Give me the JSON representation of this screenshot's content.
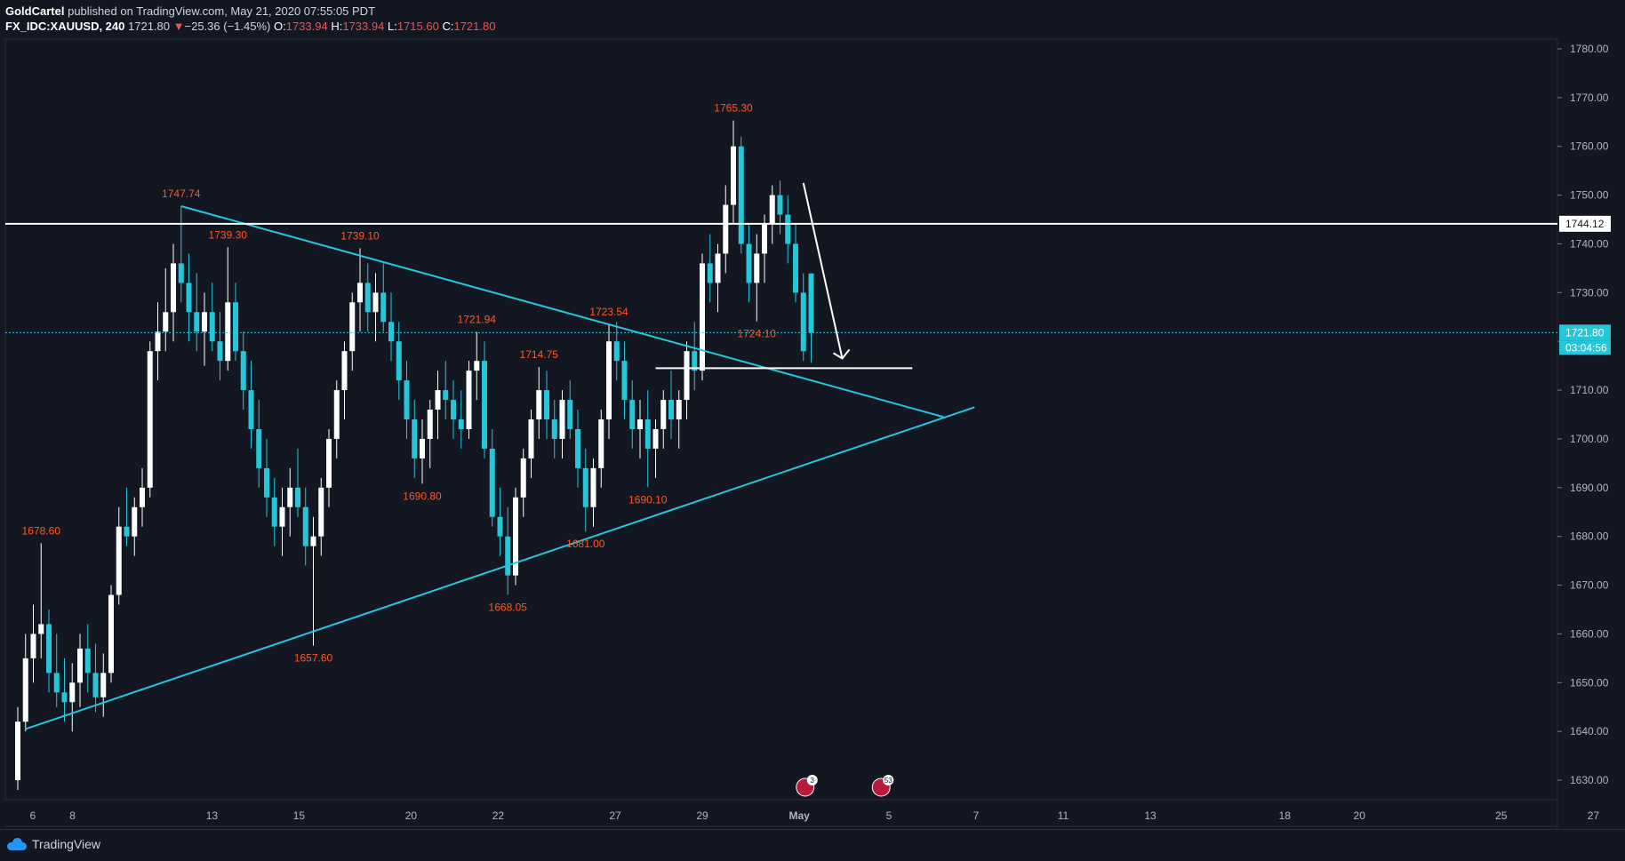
{
  "header": {
    "author": "GoldCartel",
    "published": "published on TradingView.com, May 21, 2020 07:55:05 PDT",
    "symbol": "FX_IDC:XAUUSD, 240",
    "last": "1721.80",
    "change_arrow": "▼",
    "change": "−25.36 (−1.45%)",
    "o_label": "O:",
    "o": "1733.94",
    "h_label": "H:",
    "h": "1733.94",
    "l_label": "L:",
    "l": "1715.60",
    "c_label": "C:",
    "c": "1721.80"
  },
  "footer": {
    "brand": "TradingView",
    "logo_icon": "tradingview-cloud-icon"
  },
  "colors": {
    "background": "#131722",
    "up": "#ffffff",
    "down": "#26c6da",
    "trendline": "#26c6da",
    "price_label": "#ff5722",
    "axis_text": "#b2b5be"
  },
  "chart_data": {
    "type": "candlestick",
    "ylim": [
      1626,
      1782
    ],
    "y_ticks": [
      1630,
      1640,
      1650,
      1660,
      1670,
      1680,
      1690,
      1700,
      1710,
      1720,
      1730,
      1740,
      1750,
      1760,
      1770,
      1780
    ],
    "x_tick_labels": [
      "6",
      "8",
      "13",
      "15",
      "20",
      "22",
      "27",
      "29",
      "May",
      "5",
      "7",
      "11",
      "13",
      "18",
      "20",
      "25",
      "27"
    ],
    "ohlc_4h": [
      [
        1630,
        1645,
        1628,
        1642
      ],
      [
        1642,
        1660,
        1640,
        1655
      ],
      [
        1655,
        1666,
        1650,
        1660
      ],
      [
        1660,
        1678.6,
        1655,
        1662
      ],
      [
        1662,
        1665,
        1648,
        1652
      ],
      [
        1652,
        1660,
        1645,
        1648
      ],
      [
        1648,
        1655,
        1642,
        1646
      ],
      [
        1646,
        1654,
        1640,
        1650
      ],
      [
        1650,
        1660,
        1645,
        1657
      ],
      [
        1657,
        1662,
        1648,
        1652
      ],
      [
        1652,
        1658,
        1644,
        1647
      ],
      [
        1647,
        1656,
        1643,
        1652
      ],
      [
        1652,
        1670,
        1650,
        1668
      ],
      [
        1668,
        1686,
        1666,
        1682
      ],
      [
        1682,
        1690,
        1678,
        1680
      ],
      [
        1680,
        1688,
        1676,
        1686
      ],
      [
        1686,
        1694,
        1682,
        1690
      ],
      [
        1690,
        1720,
        1688,
        1718
      ],
      [
        1718,
        1728,
        1712,
        1722
      ],
      [
        1722,
        1735,
        1718,
        1726
      ],
      [
        1726,
        1740,
        1720,
        1736
      ],
      [
        1736,
        1747.74,
        1728,
        1732
      ],
      [
        1732,
        1738,
        1720,
        1726
      ],
      [
        1726,
        1734,
        1718,
        1722
      ],
      [
        1722,
        1730,
        1715,
        1726
      ],
      [
        1726,
        1732,
        1718,
        1720
      ],
      [
        1720,
        1726,
        1712,
        1716
      ],
      [
        1716,
        1739.3,
        1714,
        1728
      ],
      [
        1728,
        1732,
        1716,
        1718
      ],
      [
        1718,
        1722,
        1706,
        1710
      ],
      [
        1710,
        1716,
        1698,
        1702
      ],
      [
        1702,
        1708,
        1690,
        1694
      ],
      [
        1694,
        1700,
        1684,
        1688
      ],
      [
        1688,
        1692,
        1678,
        1682
      ],
      [
        1682,
        1690,
        1676,
        1686
      ],
      [
        1686,
        1694,
        1680,
        1690
      ],
      [
        1690,
        1698,
        1684,
        1686
      ],
      [
        1686,
        1690,
        1674,
        1678
      ],
      [
        1678,
        1684,
        1657.6,
        1680
      ],
      [
        1680,
        1692,
        1676,
        1690
      ],
      [
        1690,
        1702,
        1686,
        1700
      ],
      [
        1700,
        1712,
        1696,
        1710
      ],
      [
        1710,
        1720,
        1704,
        1718
      ],
      [
        1718,
        1730,
        1714,
        1728
      ],
      [
        1728,
        1739.1,
        1722,
        1732
      ],
      [
        1732,
        1736,
        1722,
        1726
      ],
      [
        1726,
        1734,
        1720,
        1730
      ],
      [
        1730,
        1736,
        1722,
        1724
      ],
      [
        1724,
        1730,
        1716,
        1720
      ],
      [
        1720,
        1724,
        1708,
        1712
      ],
      [
        1712,
        1716,
        1700,
        1704
      ],
      [
        1704,
        1708,
        1692,
        1696
      ],
      [
        1696,
        1704,
        1690.8,
        1700
      ],
      [
        1700,
        1708,
        1694,
        1706
      ],
      [
        1706,
        1714,
        1700,
        1710
      ],
      [
        1710,
        1716,
        1704,
        1708
      ],
      [
        1708,
        1712,
        1700,
        1704
      ],
      [
        1704,
        1710,
        1698,
        1702
      ],
      [
        1702,
        1716,
        1700,
        1714
      ],
      [
        1714,
        1721.94,
        1708,
        1716
      ],
      [
        1716,
        1720,
        1696,
        1698
      ],
      [
        1698,
        1702,
        1682,
        1684
      ],
      [
        1684,
        1690,
        1676,
        1680
      ],
      [
        1680,
        1686,
        1668.05,
        1672
      ],
      [
        1672,
        1690,
        1670,
        1688
      ],
      [
        1688,
        1698,
        1684,
        1696
      ],
      [
        1696,
        1706,
        1692,
        1704
      ],
      [
        1704,
        1714.75,
        1700,
        1710
      ],
      [
        1710,
        1714,
        1700,
        1704
      ],
      [
        1704,
        1708,
        1696,
        1700
      ],
      [
        1700,
        1710,
        1696,
        1708
      ],
      [
        1708,
        1712,
        1700,
        1702
      ],
      [
        1702,
        1706,
        1690,
        1694
      ],
      [
        1694,
        1698,
        1681,
        1686
      ],
      [
        1686,
        1696,
        1682,
        1694
      ],
      [
        1694,
        1706,
        1690,
        1704
      ],
      [
        1704,
        1723.54,
        1700,
        1720
      ],
      [
        1720,
        1724,
        1712,
        1716
      ],
      [
        1716,
        1720,
        1704,
        1708
      ],
      [
        1708,
        1712,
        1698,
        1702
      ],
      [
        1702,
        1708,
        1696,
        1704
      ],
      [
        1704,
        1710,
        1690.1,
        1698
      ],
      [
        1698,
        1704,
        1692,
        1702
      ],
      [
        1702,
        1710,
        1698,
        1708
      ],
      [
        1708,
        1714,
        1700,
        1704
      ],
      [
        1704,
        1710,
        1698,
        1708
      ],
      [
        1708,
        1720,
        1704,
        1718
      ],
      [
        1718,
        1724,
        1710,
        1714
      ],
      [
        1714,
        1738,
        1712,
        1736
      ],
      [
        1736,
        1742,
        1728,
        1732
      ],
      [
        1732,
        1740,
        1726,
        1738
      ],
      [
        1738,
        1752,
        1734,
        1748
      ],
      [
        1748,
        1765.3,
        1744,
        1760
      ],
      [
        1760,
        1762,
        1738,
        1740
      ],
      [
        1740,
        1744,
        1728,
        1732
      ],
      [
        1732,
        1742,
        1724.1,
        1738
      ],
      [
        1738,
        1746,
        1732,
        1744
      ],
      [
        1744,
        1752,
        1740,
        1750
      ],
      [
        1750,
        1753,
        1742,
        1746
      ],
      [
        1746,
        1750,
        1736,
        1740
      ],
      [
        1740,
        1744,
        1728,
        1730
      ],
      [
        1730,
        1734,
        1716,
        1718
      ],
      [
        1733.94,
        1733.94,
        1715.6,
        1721.8
      ]
    ],
    "price_annotations": [
      {
        "text": "1678.60",
        "x_index": 3,
        "price": 1678.6,
        "pos": "above"
      },
      {
        "text": "1747.74",
        "x_index": 21,
        "price": 1747.74,
        "pos": "above"
      },
      {
        "text": "1739.30",
        "x_index": 27,
        "price": 1739.3,
        "pos": "above"
      },
      {
        "text": "1657.60",
        "x_index": 38,
        "price": 1657.6,
        "pos": "below"
      },
      {
        "text": "1739.10",
        "x_index": 44,
        "price": 1739.1,
        "pos": "above"
      },
      {
        "text": "1690.80",
        "x_index": 52,
        "price": 1690.8,
        "pos": "below"
      },
      {
        "text": "1721.94",
        "x_index": 59,
        "price": 1721.94,
        "pos": "above"
      },
      {
        "text": "1668.05",
        "x_index": 63,
        "price": 1668.05,
        "pos": "below"
      },
      {
        "text": "1714.75",
        "x_index": 67,
        "price": 1714.75,
        "pos": "above"
      },
      {
        "text": "1681.00",
        "x_index": 73,
        "price": 1681.0,
        "pos": "below"
      },
      {
        "text": "1723.54",
        "x_index": 76,
        "price": 1723.54,
        "pos": "above"
      },
      {
        "text": "1690.10",
        "x_index": 81,
        "price": 1690.1,
        "pos": "below"
      },
      {
        "text": "1765.30",
        "x_index": 92,
        "price": 1765.3,
        "pos": "above"
      },
      {
        "text": "1724.10",
        "x_index": 95,
        "price": 1724.1,
        "pos": "below"
      }
    ],
    "horizontal_level": {
      "price": 1744.12,
      "label": "1744.12"
    },
    "support_level": {
      "price": 1714.5
    },
    "current_price": {
      "price": 1721.8,
      "label": "1721.80",
      "countdown": "03:04:56"
    },
    "upper_trendline": {
      "start": [
        21,
        1747.74
      ],
      "end": [
        119,
        1704.5
      ]
    },
    "lower_trendline": {
      "start": [
        1,
        1640.5
      ],
      "end": [
        123,
        1706.5
      ]
    },
    "forecast_arrow": {
      "start": [
        101,
        1752.5
      ],
      "end": [
        106,
        1716.5
      ]
    },
    "event_icons": [
      {
        "x_index": 101,
        "count": "3"
      },
      {
        "x_index": 111,
        "count": "53"
      }
    ]
  }
}
